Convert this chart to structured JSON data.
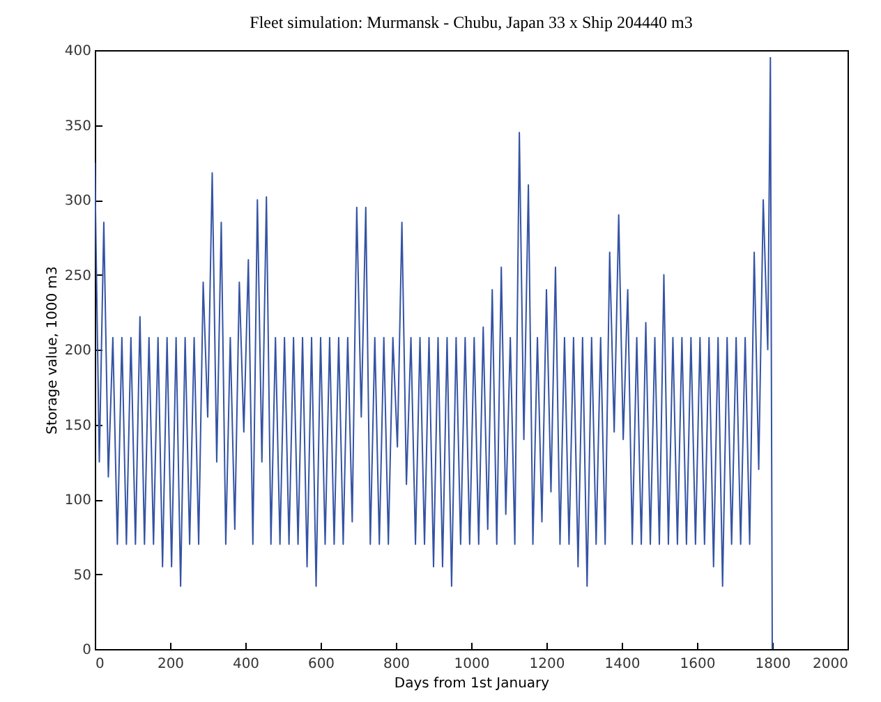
{
  "chart_data": {
    "type": "line",
    "title": "Fleet simulation: Murmansk - Chubu, Japan 33 x Ship 204440 m3",
    "xlabel": "Days from 1st January",
    "ylabel": "Storage value, 1000 m3",
    "xlim": [
      0,
      2000
    ],
    "xticks": [
      0,
      200,
      400,
      600,
      800,
      1000,
      1200,
      1400,
      1600,
      1800,
      2000
    ],
    "ylim": [
      0,
      400
    ],
    "yticks": [
      0,
      50,
      100,
      150,
      200,
      250,
      300,
      350,
      400
    ],
    "grid": false,
    "x": [
      0,
      12,
      24,
      36,
      48,
      60,
      72,
      84,
      96,
      108,
      120,
      132,
      144,
      156,
      168,
      180,
      192,
      204,
      216,
      228,
      240,
      252,
      264,
      276,
      288,
      300,
      312,
      324,
      336,
      348,
      360,
      372,
      384,
      396,
      408,
      420,
      432,
      444,
      456,
      468,
      480,
      492,
      504,
      516,
      528,
      540,
      552,
      564,
      576,
      588,
      600,
      612,
      624,
      636,
      648,
      660,
      672,
      684,
      696,
      708,
      720,
      732,
      744,
      756,
      768,
      780,
      792,
      804,
      816,
      828,
      840,
      852,
      864,
      876,
      888,
      900,
      912,
      924,
      936,
      948,
      960,
      972,
      984,
      996,
      1008,
      1020,
      1032,
      1044,
      1056,
      1068,
      1080,
      1092,
      1104,
      1116,
      1128,
      1140,
      1152,
      1164,
      1176,
      1188,
      1200,
      1212,
      1224,
      1236,
      1248,
      1260,
      1272,
      1284,
      1296,
      1308,
      1320,
      1332,
      1344,
      1356,
      1368,
      1380,
      1392,
      1404,
      1416,
      1428,
      1440,
      1452,
      1464,
      1476,
      1488,
      1500,
      1512,
      1524,
      1536,
      1548,
      1560,
      1572,
      1584,
      1596,
      1608,
      1620,
      1632,
      1644,
      1656,
      1668,
      1680,
      1692,
      1704,
      1716,
      1728,
      1740,
      1752,
      1764,
      1776,
      1788,
      1795,
      1800
    ],
    "series": [
      {
        "color": "#3453a4",
        "values": [
          325,
          125,
          285,
          115,
          208,
          70,
          208,
          70,
          208,
          70,
          222,
          70,
          208,
          70,
          208,
          55,
          208,
          55,
          208,
          42,
          208,
          70,
          208,
          70,
          245,
          155,
          318,
          125,
          285,
          70,
          208,
          80,
          245,
          145,
          260,
          70,
          300,
          125,
          302,
          70,
          208,
          70,
          208,
          70,
          208,
          70,
          208,
          55,
          208,
          42,
          208,
          70,
          208,
          70,
          208,
          70,
          208,
          85,
          295,
          155,
          295,
          70,
          208,
          70,
          208,
          70,
          208,
          135,
          285,
          110,
          208,
          70,
          208,
          70,
          208,
          55,
          208,
          55,
          208,
          42,
          208,
          70,
          208,
          70,
          208,
          70,
          215,
          80,
          240,
          70,
          255,
          90,
          208,
          70,
          345,
          140,
          310,
          70,
          208,
          85,
          240,
          105,
          255,
          70,
          208,
          70,
          208,
          55,
          208,
          42,
          208,
          70,
          208,
          70,
          265,
          145,
          290,
          140,
          240,
          70,
          208,
          70,
          218,
          70,
          208,
          70,
          250,
          70,
          208,
          70,
          208,
          70,
          208,
          70,
          208,
          70,
          208,
          55,
          208,
          42,
          208,
          70,
          208,
          70,
          208,
          70,
          265,
          120,
          300,
          200,
          395,
          0
        ]
      }
    ]
  }
}
